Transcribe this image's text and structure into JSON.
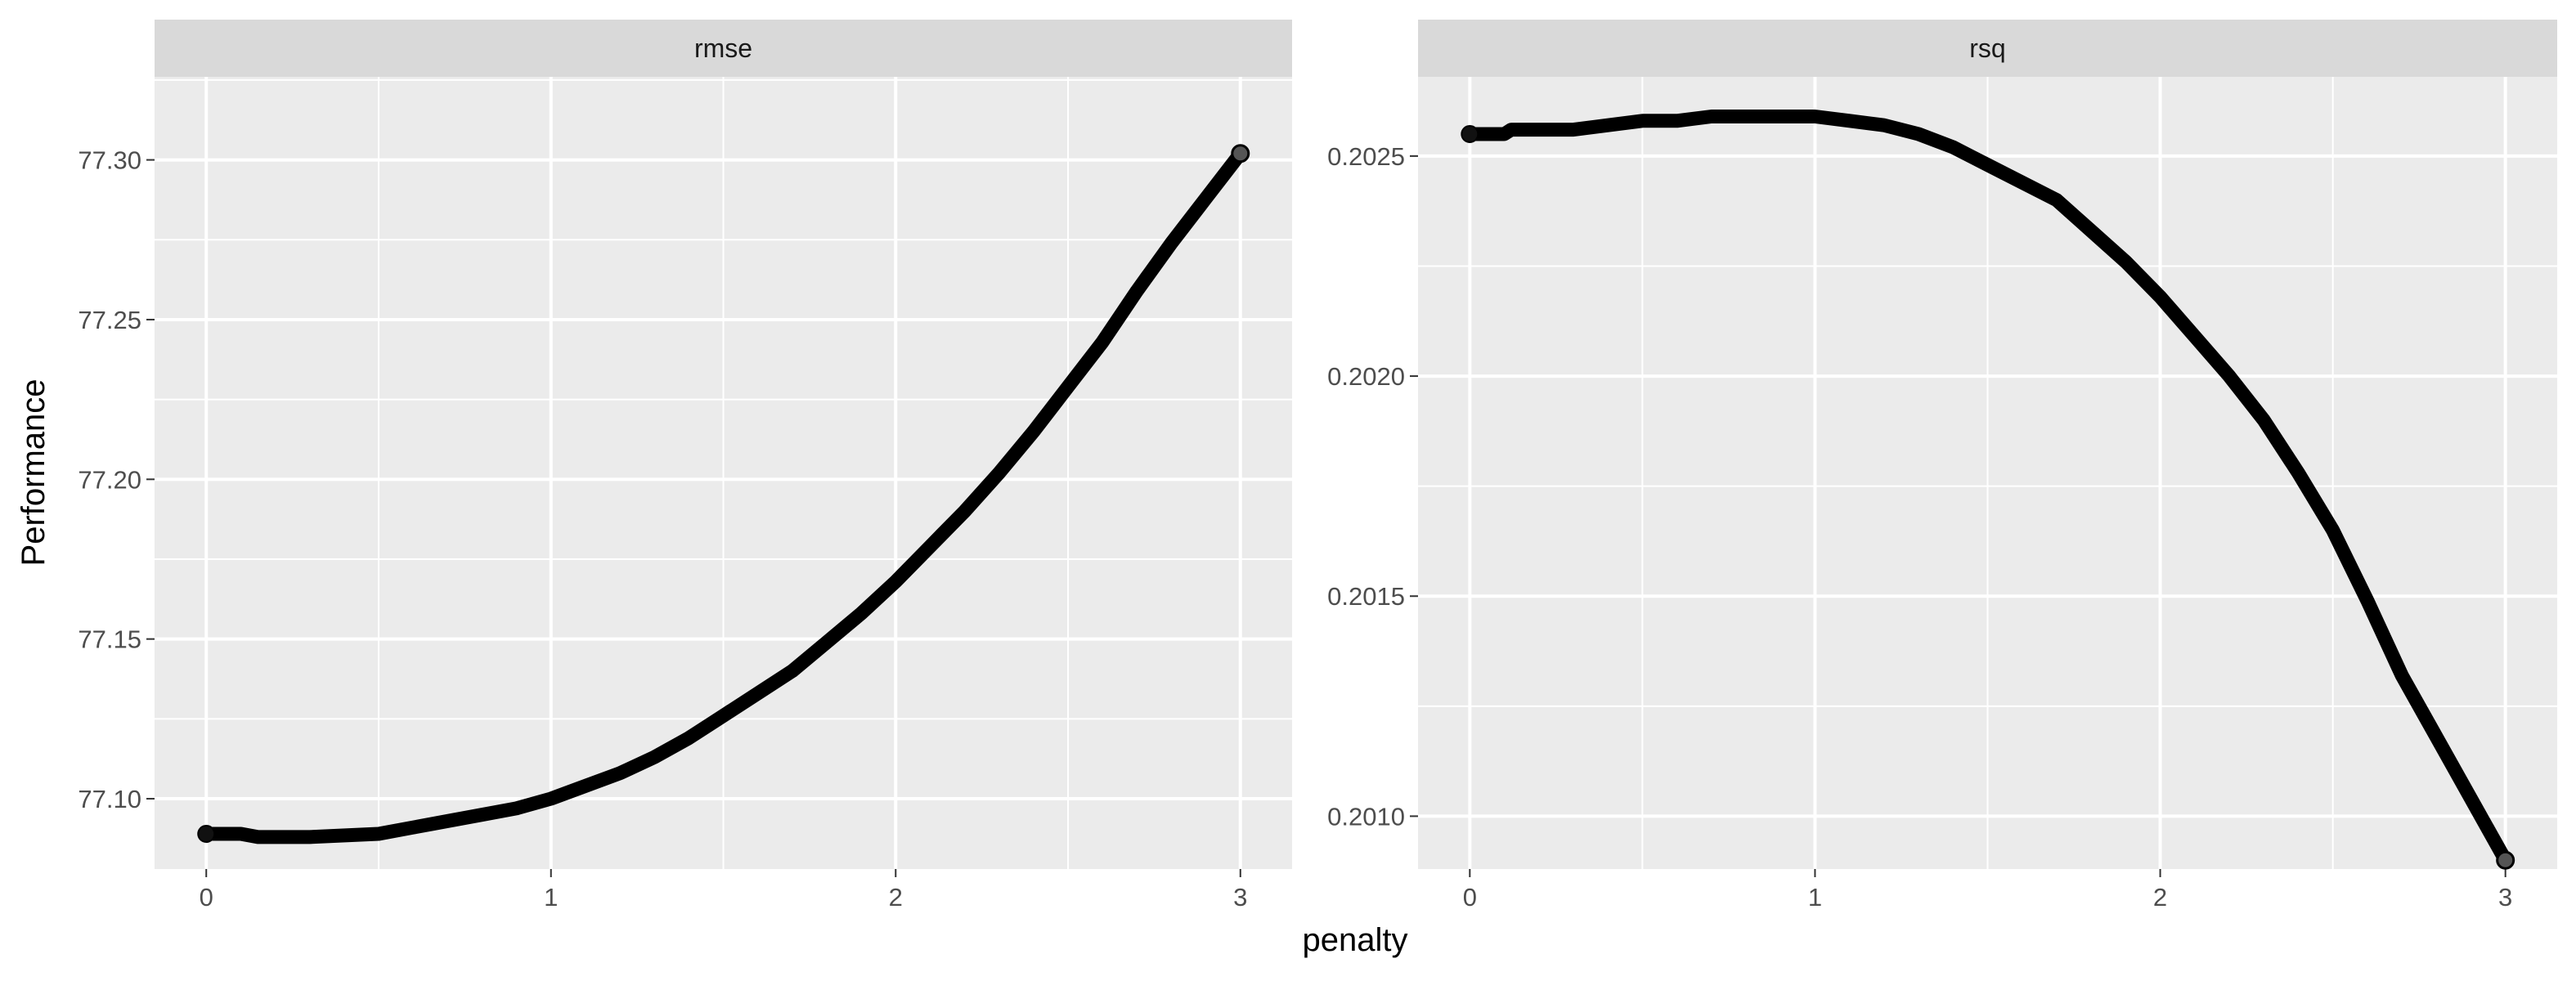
{
  "chart_data": {
    "type": "line",
    "title": "",
    "xlabel": "penalty",
    "ylabel": "Performance",
    "grid": true,
    "legend": "none",
    "facets": [
      {
        "strip_label": "rmse",
        "xlim": [
          -0.15,
          3.15
        ],
        "ylim": [
          77.078,
          77.326
        ],
        "x_ticks": [
          0,
          1,
          2,
          3
        ],
        "x_tick_labels": [
          "0",
          "1",
          "2",
          "3"
        ],
        "y_ticks": [
          77.1,
          77.15,
          77.2,
          77.25,
          77.3
        ],
        "y_tick_labels": [
          "77.10",
          "77.15",
          "77.20",
          "77.25",
          "77.30"
        ],
        "series": [
          {
            "name": "rmse",
            "x": [
              0,
              0.1,
              0.15,
              0.3,
              0.5,
              0.6,
              0.7,
              0.8,
              0.9,
              1.0,
              1.1,
              1.2,
              1.3,
              1.4,
              1.5,
              1.6,
              1.7,
              1.8,
              1.9,
              2.0,
              2.1,
              2.2,
              2.3,
              2.4,
              2.5,
              2.6,
              2.7,
              2.8,
              2.9,
              3.0
            ],
            "y": [
              77.089,
              77.089,
              77.088,
              77.088,
              77.089,
              77.091,
              77.093,
              77.095,
              77.097,
              77.1,
              77.104,
              77.108,
              77.113,
              77.119,
              77.126,
              77.133,
              77.14,
              77.149,
              77.158,
              77.168,
              77.179,
              77.19,
              77.202,
              77.215,
              77.229,
              77.243,
              77.259,
              77.274,
              77.288,
              77.302
            ]
          }
        ]
      },
      {
        "strip_label": "rsq",
        "xlim": [
          -0.15,
          3.15
        ],
        "ylim": [
          0.20088,
          0.20268
        ],
        "x_ticks": [
          0,
          1,
          2,
          3
        ],
        "x_tick_labels": [
          "0",
          "1",
          "2",
          "3"
        ],
        "y_ticks": [
          0.201,
          0.2015,
          0.202,
          0.2025
        ],
        "y_tick_labels": [
          "0.2010",
          "0.2015",
          "0.2020",
          "0.2025"
        ],
        "series": [
          {
            "name": "rsq",
            "x": [
              0,
              0.1,
              0.12,
              0.2,
              0.3,
              0.4,
              0.5,
              0.6,
              0.7,
              0.8,
              0.9,
              1.0,
              1.1,
              1.2,
              1.3,
              1.4,
              1.5,
              1.6,
              1.7,
              1.8,
              1.9,
              2.0,
              2.1,
              2.2,
              2.3,
              2.4,
              2.5,
              2.6,
              2.7,
              2.8,
              2.9,
              3.0
            ],
            "y": [
              0.20255,
              0.20255,
              0.20256,
              0.20256,
              0.20256,
              0.20257,
              0.20258,
              0.20258,
              0.20259,
              0.20259,
              0.20259,
              0.20259,
              0.20258,
              0.20257,
              0.20255,
              0.20252,
              0.20248,
              0.20244,
              0.2024,
              0.20233,
              0.20226,
              0.20218,
              0.20209,
              0.202,
              0.2019,
              0.20178,
              0.20165,
              0.20149,
              0.20132,
              0.20118,
              0.20104,
              0.2009
            ]
          }
        ]
      }
    ],
    "colors": {
      "panel_background": "#ebebeb",
      "strip_background": "#d9d9d9",
      "grid_major": "#ffffff",
      "line": "#000000"
    }
  }
}
